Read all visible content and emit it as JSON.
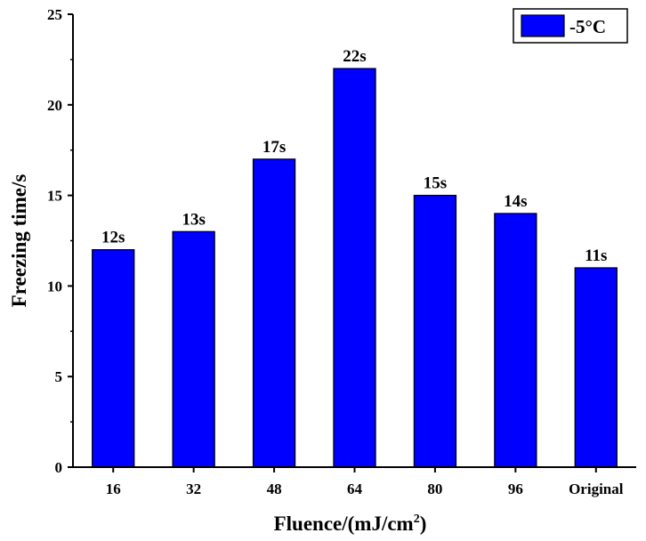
{
  "chart_data": {
    "type": "bar",
    "categories": [
      "16",
      "32",
      "48",
      "64",
      "80",
      "96",
      "Original"
    ],
    "values": [
      12,
      13,
      17,
      22,
      15,
      14,
      11
    ],
    "data_labels": [
      "12s",
      "13s",
      "17s",
      "22s",
      "15s",
      "14s",
      "11s"
    ],
    "title": "",
    "xlabel": "Fluence/(mJ/cm",
    "xlabel_sup": "2",
    "xlabel_suffix": ")",
    "ylabel": "Freezing time/s",
    "ylim": [
      0,
      25
    ],
    "yticks": [
      0,
      5,
      10,
      15,
      20,
      25
    ],
    "grid": false,
    "legend": {
      "position": "top-right",
      "entries": [
        {
          "name": "-5°C",
          "color": "#0000ff"
        }
      ]
    },
    "bar_color": "#0000ff",
    "bar_edge_color": "#000000"
  }
}
